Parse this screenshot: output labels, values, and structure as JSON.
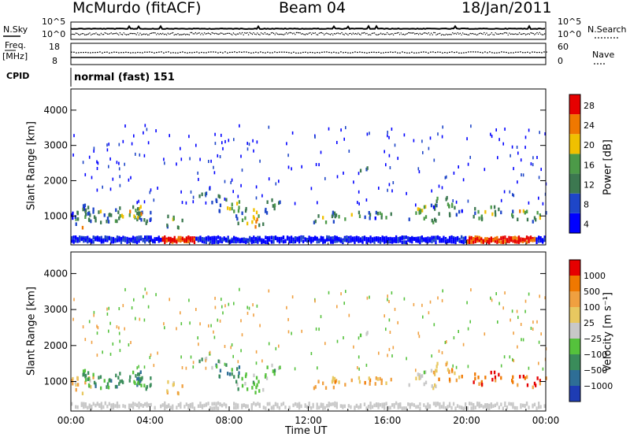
{
  "header": {
    "station": "McMurdo (fitACF)",
    "beam": "Beam 04",
    "date": "18/Jan/2011"
  },
  "sky_panel": {
    "left_label": "N.Sky",
    "right_label": "N.Search",
    "right_ticks": [
      "10^5",
      "10^0"
    ],
    "left_ticks": [
      "10^5",
      "10^0"
    ]
  },
  "freq_panel": {
    "left_label_line1": "Freq.",
    "left_label_line2": "[MHz]",
    "right_label": "Nave",
    "left_ticks": [
      "18",
      "8"
    ],
    "right_ticks": [
      "60",
      "0"
    ]
  },
  "cpid": {
    "label": "CPID",
    "mode": "normal (fast) 151"
  },
  "chart_data": [
    {
      "type": "heatmap",
      "name": "power",
      "ylabel": "Slant Range [km]",
      "ylim": [
        180,
        4600
      ],
      "yticks": [
        "1000",
        "2000",
        "3000",
        "4000"
      ],
      "xlabel": "Time UT",
      "xticks": [
        "00:00",
        "04:00",
        "08:00",
        "12:00",
        "16:00",
        "20:00",
        "00:00"
      ],
      "colorbar": {
        "label": "Power [dB]",
        "ticks": [
          "28",
          "24",
          "20",
          "16",
          "12",
          "8",
          "4"
        ],
        "colors": [
          "#0000ff",
          "#1e46c8",
          "#3c7850",
          "#4c9a48",
          "#f0c000",
          "#f07800",
          "#e60000"
        ]
      }
    },
    {
      "type": "heatmap",
      "name": "velocity",
      "ylabel": "Slant Range [km]",
      "ylim": [
        180,
        4600
      ],
      "yticks": [
        "1000",
        "2000",
        "3000",
        "4000"
      ],
      "xlabel": "Time UT",
      "xticks": [
        "00:00",
        "04:00",
        "08:00",
        "12:00",
        "16:00",
        "20:00",
        "00:00"
      ],
      "colorbar": {
        "label": "Velocity [m s⁻¹]",
        "ticks": [
          "1000",
          "500",
          "100",
          "25",
          "−25",
          "−100",
          "−500",
          "−1000"
        ],
        "colors": [
          "#1e3cb4",
          "#2e6e96",
          "#3a8c5a",
          "#55c23c",
          "#c8c8c8",
          "#e8c860",
          "#f0a040",
          "#f07800",
          "#e60000"
        ]
      }
    }
  ]
}
